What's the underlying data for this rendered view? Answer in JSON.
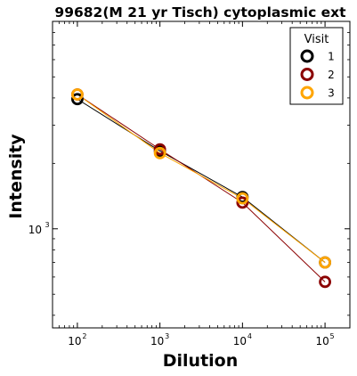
{
  "chart_data": {
    "type": "line",
    "title": "99682(M 21 yr Tisch) cytoplasmic ext",
    "xlabel": "Dilution",
    "ylabel": "Intensity",
    "xscale": "log",
    "yscale": "log",
    "xlim": [
      50,
      200000
    ],
    "ylim": [
      350,
      9000
    ],
    "x_ticks": [
      {
        "value": 100,
        "base": "10",
        "exp": "2"
      },
      {
        "value": 1000,
        "base": "10",
        "exp": "3"
      },
      {
        "value": 10000,
        "base": "10",
        "exp": "4"
      },
      {
        "value": 100000,
        "base": "10",
        "exp": "5"
      }
    ],
    "y_ticks": [
      {
        "value": 1000,
        "base": "10",
        "exp": "3"
      }
    ],
    "legend": {
      "title": "Visit",
      "placement": "top-right"
    },
    "x": [
      100,
      1000,
      10000,
      100000
    ],
    "series": [
      {
        "name": "1",
        "color": "#000000",
        "values": [
          3950,
          2280,
          1400,
          700
        ]
      },
      {
        "name": "2",
        "color": "#8b0000",
        "values": [
          4150,
          2320,
          1320,
          570
        ]
      },
      {
        "name": "3",
        "color": "#ffa500",
        "values": [
          4150,
          2230,
          1380,
          700
        ]
      }
    ]
  }
}
